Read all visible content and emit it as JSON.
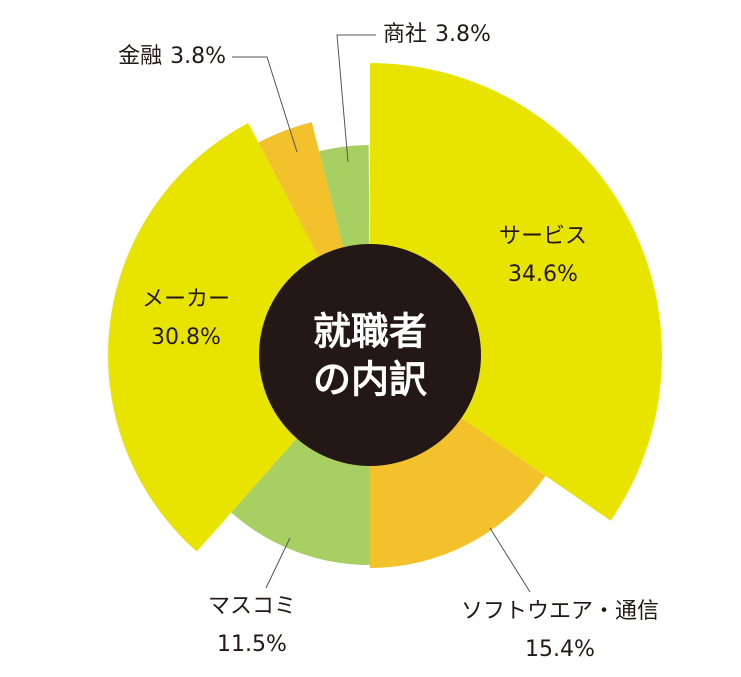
{
  "chart_data": {
    "type": "pie",
    "title": [
      "就職者",
      "の内訳"
    ],
    "categories": [
      "サービス",
      "ソフトウエア・通信",
      "マスコミ",
      "メーカー",
      "金融",
      "商社"
    ],
    "values": [
      34.6,
      15.4,
      11.5,
      30.8,
      3.8,
      3.8
    ],
    "value_labels": [
      "34.6%",
      "15.4%",
      "11.5%",
      "30.8%",
      "3.8%",
      "3.8%"
    ],
    "colors": [
      "#e9e300",
      "#f3c12c",
      "#a8cf62",
      "#e9e300",
      "#f3c12c",
      "#a8cf62"
    ]
  }
}
